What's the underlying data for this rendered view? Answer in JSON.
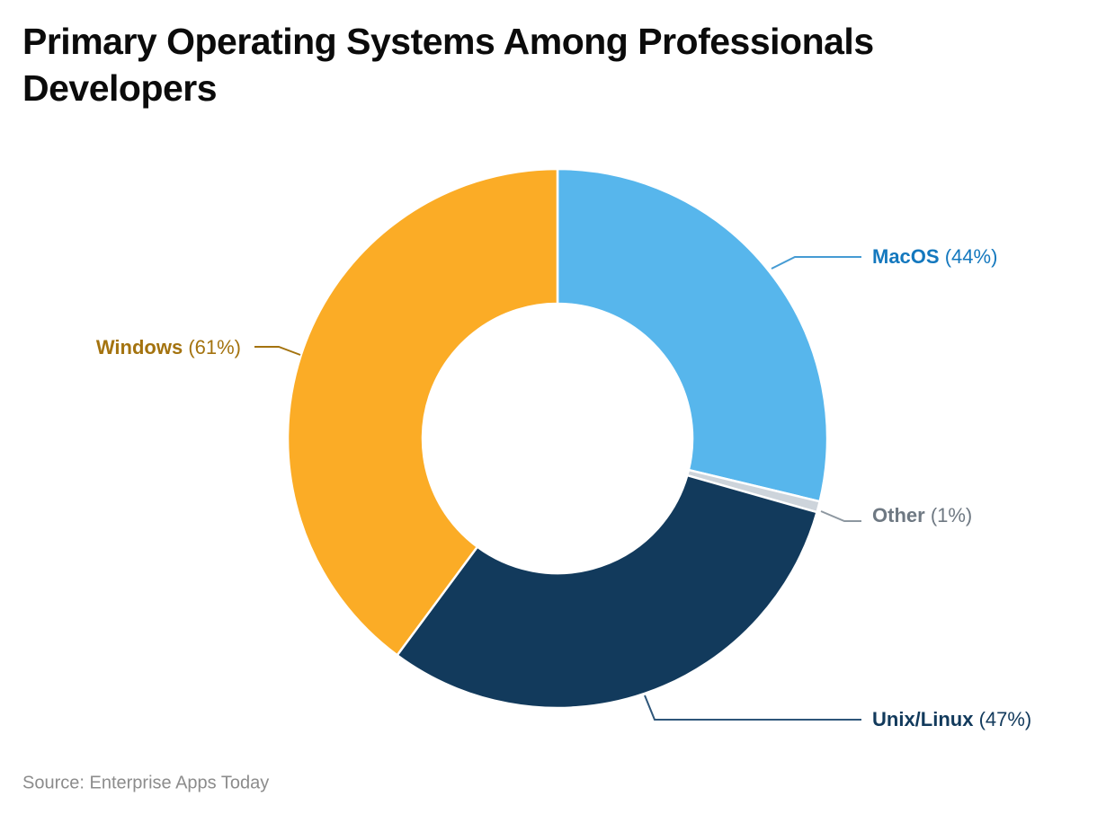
{
  "page": {
    "title_lines": [
      "Primary Operating Systems Among Professionals",
      "Developers"
    ],
    "source": "Source: Enterprise Apps Today"
  },
  "chart_data": {
    "type": "pie",
    "variant": "donut",
    "title": "Primary Operating Systems Among Professionals Developers",
    "source": "Source: Enterprise Apps Today",
    "start_angle": "top",
    "direction": "clockwise",
    "inner_radius_ratio": 0.5,
    "unit": "%",
    "categories": [
      "MacOS",
      "Other",
      "Unix/Linux",
      "Windows"
    ],
    "values": [
      44,
      1,
      47,
      61
    ],
    "legend_position": "outside-callouts",
    "segments": [
      {
        "label": "MacOS",
        "value": 44,
        "display": "(44%)",
        "color": "#57B6EC",
        "label_color": "#1478BE",
        "leader_color": "#459BD3"
      },
      {
        "label": "Other",
        "value": 1,
        "display": "(1%)",
        "color": "#CDD4DB",
        "label_color": "#6F7983",
        "leader_color": "#8D97A0"
      },
      {
        "label": "Unix/Linux",
        "value": 47,
        "display": "(47%)",
        "color": "#123A5C",
        "label_color": "#123A5C",
        "leader_color": "#2E567A"
      },
      {
        "label": "Windows",
        "value": 61,
        "display": "(61%)",
        "color": "#FBAC26",
        "label_color": "#A4730F",
        "leader_color": "#A4730F"
      }
    ]
  }
}
